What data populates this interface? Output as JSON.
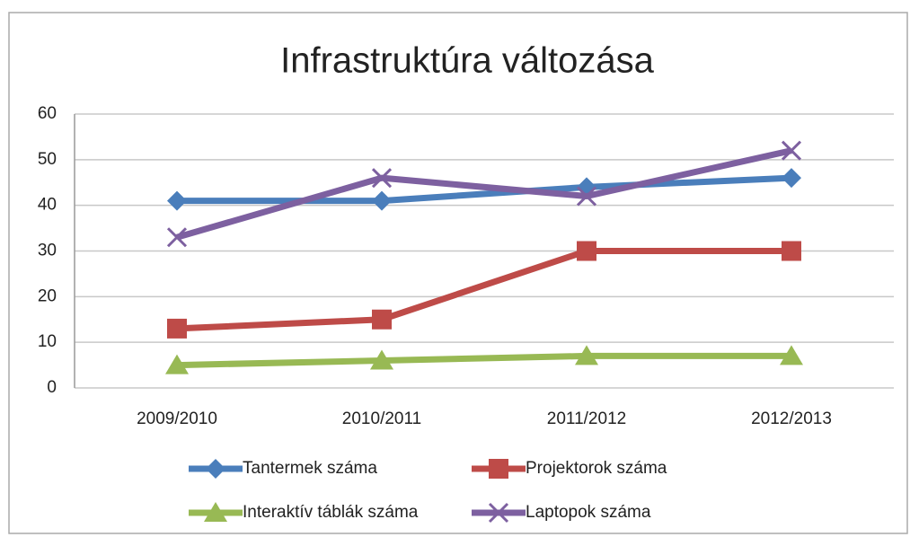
{
  "chart_data": {
    "type": "line",
    "title": "Infrastruktúra változása",
    "categories": [
      "2009/2010",
      "2010/2011",
      "2011/2012",
      "2012/2013"
    ],
    "series": [
      {
        "name": "Tantermek száma",
        "color": "#4a7ebb",
        "marker": "diamond",
        "values": [
          41,
          41,
          44,
          46
        ]
      },
      {
        "name": "Projektorok száma",
        "color": "#be4b48",
        "marker": "square",
        "values": [
          13,
          15,
          30,
          30
        ]
      },
      {
        "name": "Interaktív táblák száma",
        "color": "#98b954",
        "marker": "triangle",
        "values": [
          5,
          6,
          7,
          7
        ]
      },
      {
        "name": "Laptopok száma",
        "color": "#7d60a0",
        "marker": "x",
        "values": [
          33,
          46,
          42,
          52
        ]
      }
    ],
    "ylim": [
      0,
      60
    ],
    "yticks": [
      0,
      10,
      20,
      30,
      40,
      50,
      60
    ],
    "grid": true,
    "legend": "bottom"
  }
}
